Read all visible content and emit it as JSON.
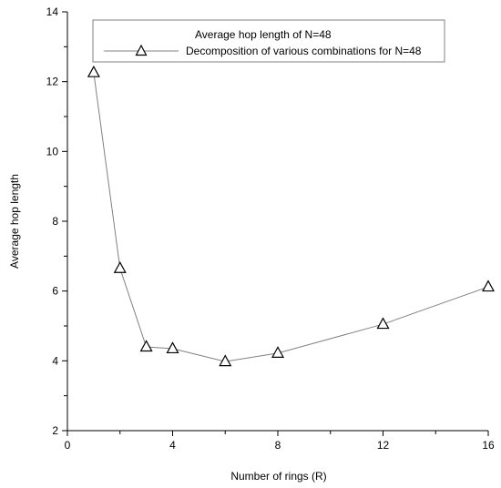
{
  "chart_data": {
    "type": "line",
    "title": "",
    "xlabel": "Number of rings (R)",
    "ylabel": "Average hop length",
    "xlim": [
      0,
      16
    ],
    "ylim": [
      2,
      14
    ],
    "x_ticks": [
      0,
      4,
      8,
      12,
      16
    ],
    "y_ticks": [
      2,
      4,
      6,
      8,
      10,
      12,
      14
    ],
    "grid": false,
    "legend": {
      "placement": "top",
      "title": "Average hop length of N=48",
      "entries": [
        "Decomposition of various combinations for N=48"
      ]
    },
    "series": [
      {
        "name": "Decomposition of various combinations for N=48",
        "marker": "triangle-open",
        "color": "#808080",
        "points": [
          {
            "x": 1,
            "y": 12.26
          },
          {
            "x": 2,
            "y": 6.65
          },
          {
            "x": 3,
            "y": 4.4
          },
          {
            "x": 4,
            "y": 4.35
          },
          {
            "x": 6,
            "y": 3.98
          },
          {
            "x": 8,
            "y": 4.22
          },
          {
            "x": 12,
            "y": 5.05
          },
          {
            "x": 16,
            "y": 6.12
          }
        ]
      }
    ]
  }
}
